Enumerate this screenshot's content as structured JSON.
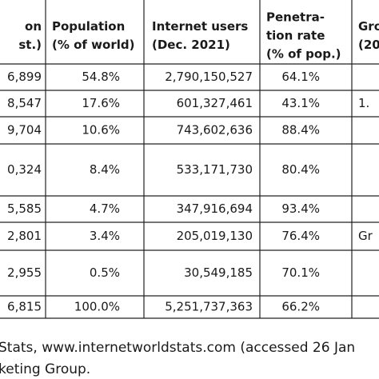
{
  "table": {
    "header": [
      [
        "on",
        "st.)"
      ],
      [
        "Population",
        "(% of world)"
      ],
      [
        "Internet users",
        "(Dec. 2021)"
      ],
      [
        "Penetra-",
        "tion rate",
        "(% of pop.)"
      ],
      [
        "Gro",
        "(20"
      ]
    ],
    "rows": [
      [
        "6,899",
        "54.8%",
        "2,790,150,527",
        "64.1%"
      ],
      [
        "8,547",
        "17.6%",
        "601,327,461",
        "43.1%",
        "1."
      ],
      [
        "9,704",
        "10.6%",
        "743,602,636",
        "88.4%"
      ],
      [
        "0,324",
        "8.4%",
        "533,171,730",
        "80.4%"
      ],
      [
        "5,585",
        "4.7%",
        "347,916,694",
        "93.4%"
      ],
      [
        "2,801",
        "3.4%",
        "205,019,130",
        "76.4%",
        "Gr"
      ],
      [
        "2,955",
        "0.5%",
        "30,549,185",
        "70.1%"
      ],
      [
        "6,815",
        "100.0%",
        "5,251,737,363",
        "66.2%"
      ]
    ]
  },
  "footer": [
    "Stats, www.internetworldstats.com (accessed 26 Jan",
    "keting Group."
  ]
}
